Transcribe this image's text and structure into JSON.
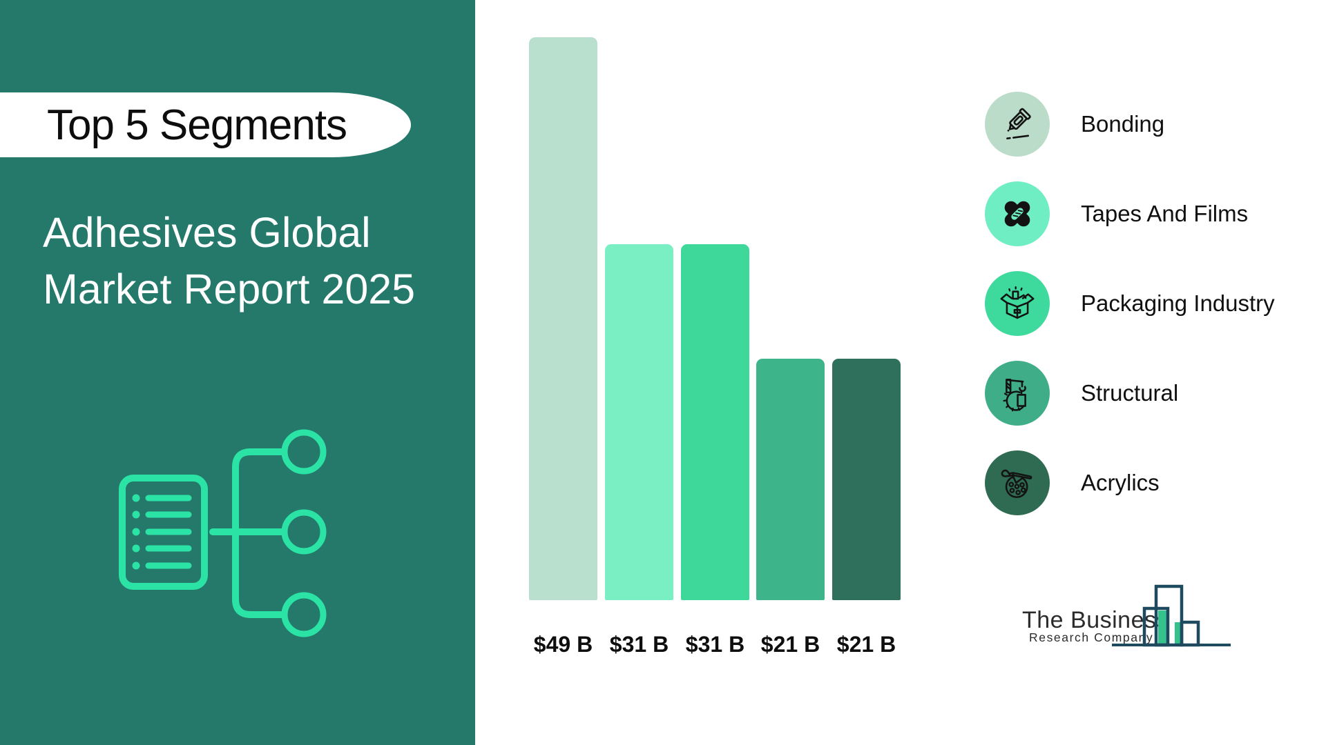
{
  "sidebar": {
    "badge": "Top 5 Segments",
    "title_lines": [
      "Adhesives Global",
      "Market Report 2025"
    ],
    "colors": {
      "background": "#24796B",
      "icon_green": "#2BE3A4",
      "badge_bg": "#FFFFFF",
      "badge_text": "#0D0D0D",
      "title_text": "#FFFFFF"
    }
  },
  "chart_data": {
    "type": "bar",
    "title": "Adhesives Global Market Report 2025 — Top 5 Segments",
    "categories": [
      "Bonding",
      "Tapes And Films",
      "Packaging Industry",
      "Structural",
      "Acrylics"
    ],
    "values": [
      49,
      31,
      31,
      21,
      21
    ],
    "value_labels": [
      "$49 B",
      "$31 B",
      "$31 B",
      "$21 B",
      "$21 B"
    ],
    "unit": "USD billions",
    "bar_colors": [
      "#B9DFCE",
      "#79EFC3",
      "#3ED89B",
      "#3DB489",
      "#2F705C"
    ],
    "xlabel": "",
    "ylabel": "",
    "ylim": [
      0,
      49
    ],
    "grid": false,
    "axes_shown": false,
    "legend_position": "right"
  },
  "legend": {
    "items": [
      {
        "label": "Bonding",
        "icon": "glue-tube-icon",
        "color": "#BCDCCA"
      },
      {
        "label": "Tapes And Films",
        "icon": "bandage-icon",
        "color": "#6FEEC3"
      },
      {
        "label": "Packaging Industry",
        "icon": "open-box-icon",
        "color": "#3ED99C"
      },
      {
        "label": "Structural",
        "icon": "crane-gear-icon",
        "color": "#3FAE88"
      },
      {
        "label": "Acrylics",
        "icon": "paint-palette-icon",
        "color": "#2E6B52"
      }
    ]
  },
  "logo": {
    "name_line1": "The Business",
    "name_line2": "Research Company",
    "colors": {
      "outline": "#1D4A5E",
      "accent": "#35C38D",
      "text": "#2B2B2B"
    }
  }
}
